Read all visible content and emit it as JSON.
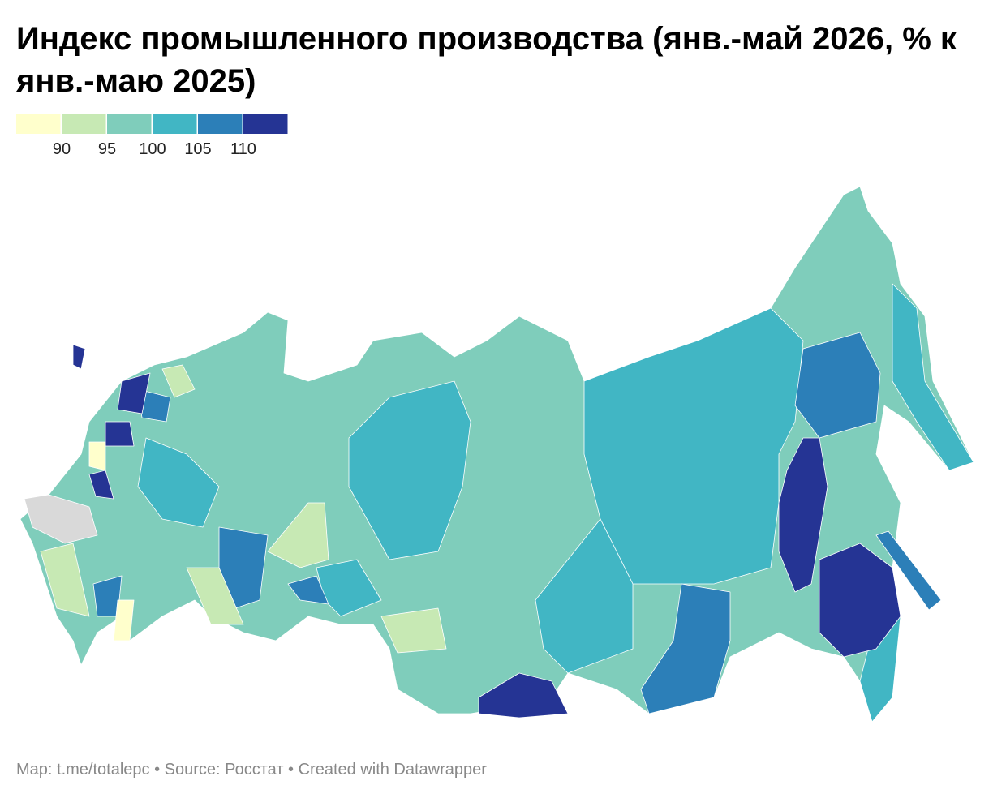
{
  "title": "Индекс промышленного производства (янв.-май 2026, % к янв.-маю 2025)",
  "legend": {
    "colors": [
      "#ffffcc",
      "#c7e9b4",
      "#7fcdbb",
      "#41b6c4",
      "#2c7fb8",
      "#253494"
    ],
    "ticks": [
      90,
      95,
      100,
      105,
      110
    ],
    "no_data_color": "#d9d9d9"
  },
  "footer": "Map: t.me/totalepc • Source: Росстат • Created with Datawrapper"
}
